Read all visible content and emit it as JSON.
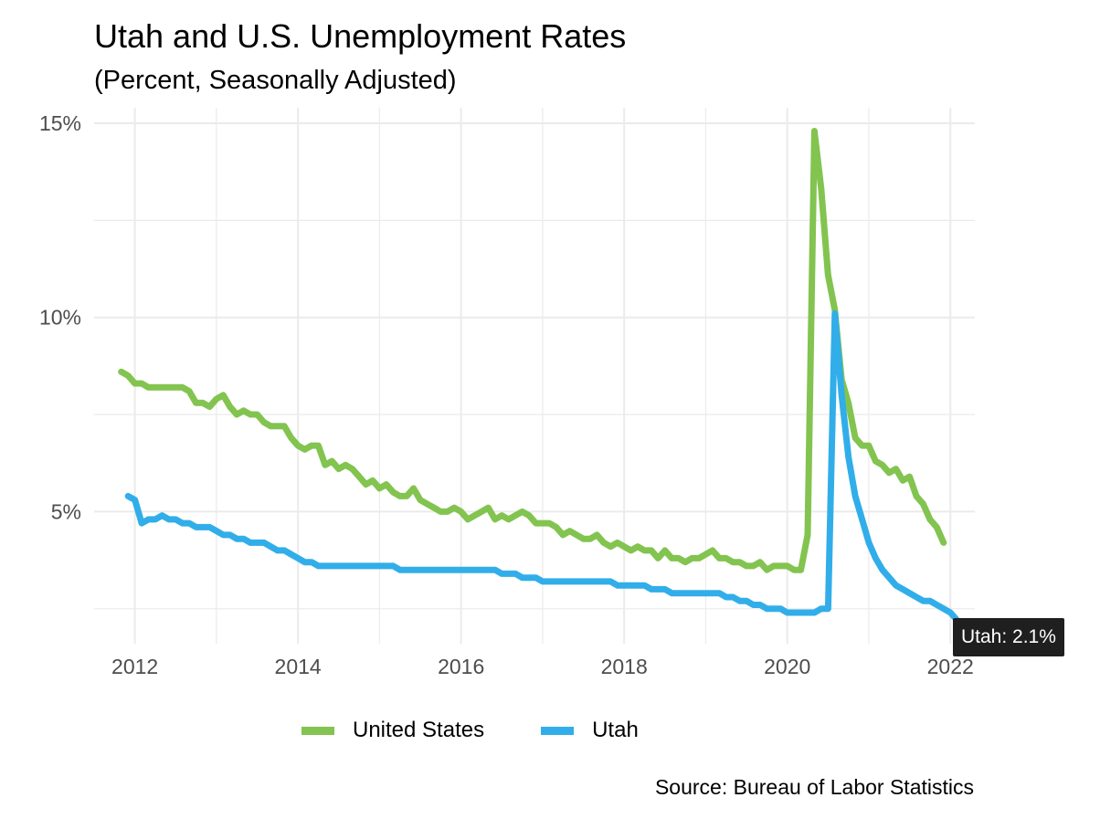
{
  "chart_data": {
    "type": "line",
    "title": "Utah and U.S. Unemployment Rates",
    "subtitle": "(Percent, Seasonally Adjusted)",
    "source": "Source: Bureau of Labor Statistics",
    "xlim": [
      2011.5,
      2022.3
    ],
    "ylim": [
      1.6,
      15.4
    ],
    "x_ticks": [
      2012,
      2014,
      2016,
      2018,
      2020,
      2022
    ],
    "y_ticks": [
      5,
      10,
      15
    ],
    "y_tick_labels": [
      "5%",
      "10%",
      "15%"
    ],
    "grid": true,
    "legend_position": "bottom",
    "tooltip": "Utah: 2.1%",
    "series": [
      {
        "name": "United States",
        "color": "#82c44f",
        "x_start": 2011.833,
        "values": [
          8.6,
          8.5,
          8.3,
          8.3,
          8.2,
          8.2,
          8.2,
          8.2,
          8.2,
          8.2,
          8.1,
          7.8,
          7.8,
          7.7,
          7.9,
          8.0,
          7.7,
          7.5,
          7.6,
          7.5,
          7.5,
          7.3,
          7.2,
          7.2,
          7.2,
          6.9,
          6.7,
          6.6,
          6.7,
          6.7,
          6.2,
          6.3,
          6.1,
          6.2,
          6.1,
          5.9,
          5.7,
          5.8,
          5.6,
          5.7,
          5.5,
          5.4,
          5.4,
          5.6,
          5.3,
          5.2,
          5.1,
          5.0,
          5.0,
          5.1,
          5.0,
          4.8,
          4.9,
          5.0,
          5.1,
          4.8,
          4.9,
          4.8,
          4.9,
          5.0,
          4.9,
          4.7,
          4.7,
          4.7,
          4.6,
          4.4,
          4.5,
          4.4,
          4.3,
          4.3,
          4.4,
          4.2,
          4.1,
          4.2,
          4.1,
          4.0,
          4.1,
          4.0,
          4.0,
          3.8,
          4.0,
          3.8,
          3.8,
          3.7,
          3.8,
          3.8,
          3.9,
          4.0,
          3.8,
          3.8,
          3.7,
          3.7,
          3.6,
          3.6,
          3.7,
          3.5,
          3.6,
          3.6,
          3.6,
          3.5,
          3.5,
          4.4,
          14.8,
          13.3,
          11.1,
          10.2,
          8.4,
          7.8,
          6.9,
          6.7,
          6.7,
          6.3,
          6.2,
          6.0,
          6.1,
          5.8,
          5.9,
          5.4,
          5.2,
          4.8,
          4.6,
          4.2
        ]
      },
      {
        "name": "Utah",
        "color": "#31aee9",
        "x_start": 2011.917,
        "values": [
          5.4,
          5.3,
          4.7,
          4.8,
          4.8,
          4.9,
          4.8,
          4.8,
          4.7,
          4.7,
          4.6,
          4.6,
          4.6,
          4.5,
          4.4,
          4.4,
          4.3,
          4.3,
          4.2,
          4.2,
          4.2,
          4.1,
          4.0,
          4.0,
          3.9,
          3.8,
          3.7,
          3.7,
          3.6,
          3.6,
          3.6,
          3.6,
          3.6,
          3.6,
          3.6,
          3.6,
          3.6,
          3.6,
          3.6,
          3.6,
          3.5,
          3.5,
          3.5,
          3.5,
          3.5,
          3.5,
          3.5,
          3.5,
          3.5,
          3.5,
          3.5,
          3.5,
          3.5,
          3.5,
          3.5,
          3.4,
          3.4,
          3.4,
          3.3,
          3.3,
          3.3,
          3.2,
          3.2,
          3.2,
          3.2,
          3.2,
          3.2,
          3.2,
          3.2,
          3.2,
          3.2,
          3.2,
          3.1,
          3.1,
          3.1,
          3.1,
          3.1,
          3.0,
          3.0,
          3.0,
          2.9,
          2.9,
          2.9,
          2.9,
          2.9,
          2.9,
          2.9,
          2.9,
          2.8,
          2.8,
          2.7,
          2.7,
          2.6,
          2.6,
          2.5,
          2.5,
          2.5,
          2.4,
          2.4,
          2.4,
          2.4,
          2.4,
          2.5,
          2.5,
          10.1,
          8.0,
          6.4,
          5.4,
          4.8,
          4.2,
          3.8,
          3.5,
          3.3,
          3.1,
          3.0,
          2.9,
          2.8,
          2.7,
          2.7,
          2.6,
          2.5,
          2.4,
          2.2,
          2.1
        ]
      }
    ]
  }
}
